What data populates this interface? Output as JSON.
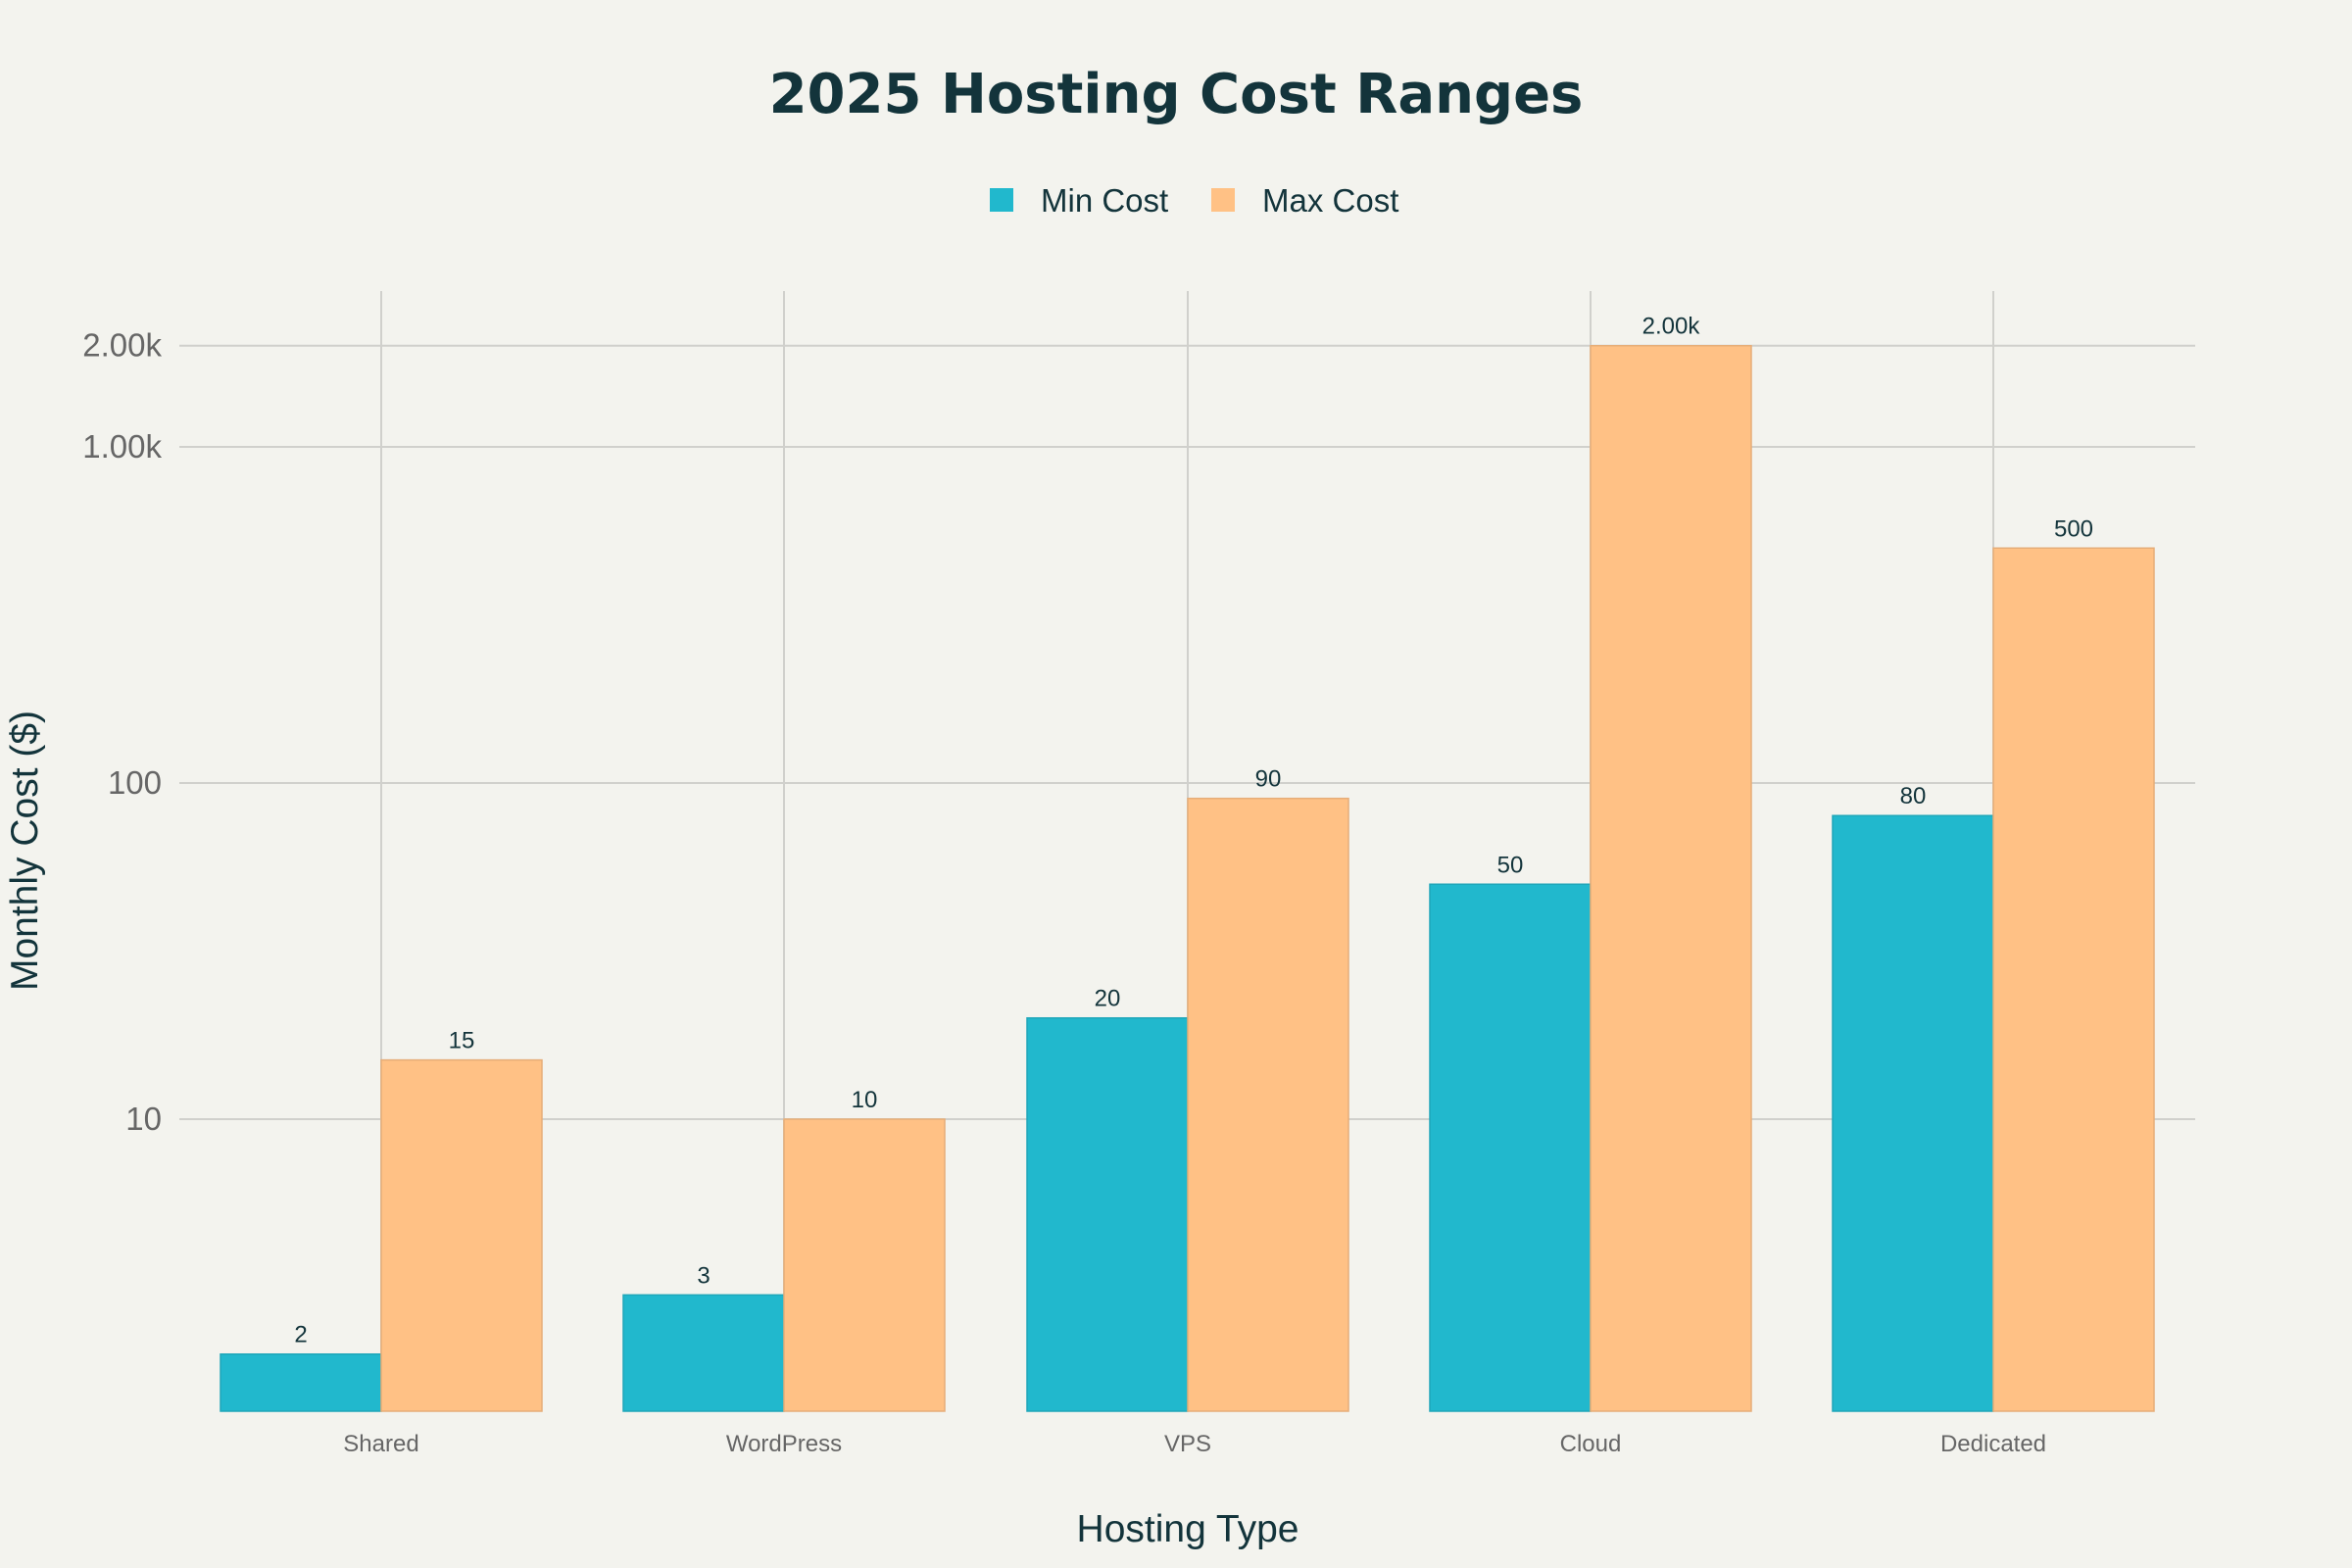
{
  "chart_data": {
    "type": "bar",
    "title": "2025 Hosting Cost Ranges",
    "xlabel": "Hosting Type",
    "ylabel": "Monthly Cost ($)",
    "yscale": "log",
    "ylim": [
      1.41,
      2600
    ],
    "grid": true,
    "legend_position": "top-center",
    "categories": [
      "Shared",
      "WordPress",
      "VPS",
      "Cloud",
      "Dedicated"
    ],
    "yticks": [
      {
        "value": 10,
        "label": "10"
      },
      {
        "value": 100,
        "label": "100"
      },
      {
        "value": 1000,
        "label": "1.00k"
      },
      {
        "value": 2000,
        "label": "2.00k"
      }
    ],
    "series": [
      {
        "name": "Min Cost",
        "color": "#21b8cd",
        "values": [
          2,
          3,
          20,
          50,
          80
        ],
        "labels": [
          "2",
          "3",
          "20",
          "50",
          "80"
        ]
      },
      {
        "name": "Max Cost",
        "color": "#ffc185",
        "values": [
          15,
          10,
          90,
          2000,
          500
        ],
        "labels": [
          "15",
          "10",
          "90",
          "2.00k",
          "500"
        ]
      }
    ]
  }
}
